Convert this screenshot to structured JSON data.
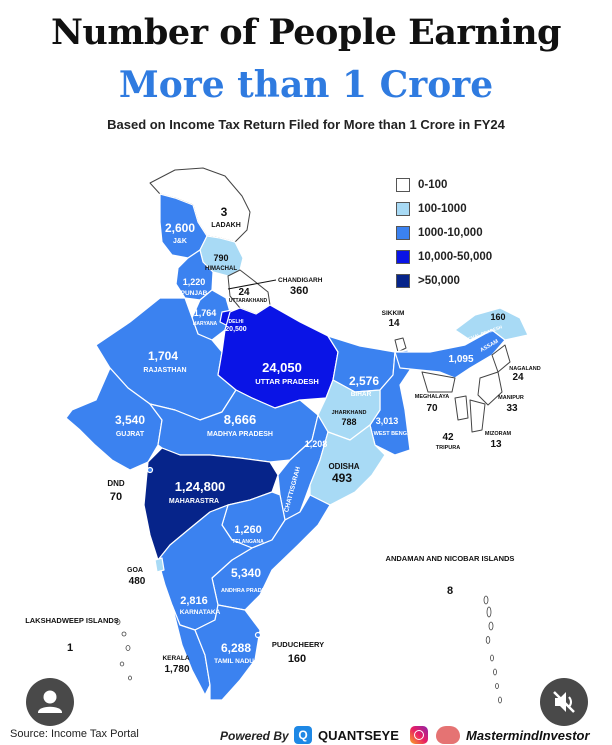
{
  "header": {
    "title": "Number of People Earning",
    "subtitle": "More than 1 Crore",
    "caption": "Based on Income Tax Return Filed for More than 1 Crore in FY24"
  },
  "legend": {
    "items": [
      {
        "label": "0-100",
        "color": "#ffffff"
      },
      {
        "label": "100-1000",
        "color": "#a8daf5"
      },
      {
        "label": "1000-10,000",
        "color": "#3b82f0"
      },
      {
        "label": "10,000-50,000",
        "color": "#0a14e6"
      },
      {
        "label": ">50,000",
        "color": "#06248a"
      }
    ]
  },
  "regions": [
    {
      "id": "ladakh",
      "name": "LADAKH",
      "value": "3"
    },
    {
      "id": "jk",
      "name": "J&K",
      "value": "2,600"
    },
    {
      "id": "himachal",
      "name": "HIMACHAL",
      "value": "790"
    },
    {
      "id": "punjab",
      "name": "PUNJAB",
      "value": "1,220"
    },
    {
      "id": "chandigarh",
      "name": "CHANDIGARH",
      "value": "360"
    },
    {
      "id": "uttarakhand",
      "name": "UTTARAKHAND",
      "value": "24"
    },
    {
      "id": "haryana",
      "name": "HARYANA",
      "value": "1,764"
    },
    {
      "id": "delhi",
      "name": "DELHI",
      "value": "20,500"
    },
    {
      "id": "rajasthan",
      "name": "RAJASTHAN",
      "value": "1,704"
    },
    {
      "id": "uttar-pradesh",
      "name": "UTTAR PRADESH",
      "value": "24,050"
    },
    {
      "id": "bihar",
      "name": "BIHAR",
      "value": "2,576"
    },
    {
      "id": "sikkim",
      "name": "SIKKIM",
      "value": "14"
    },
    {
      "id": "arunachal",
      "name": "ARUNACHAL PRADESH",
      "value": "160"
    },
    {
      "id": "assam",
      "name": "ASSAM",
      "value": "1,095"
    },
    {
      "id": "nagaland",
      "name": "NAGALAND",
      "value": "24"
    },
    {
      "id": "meghalaya",
      "name": "MEGHALAYA",
      "value": "70"
    },
    {
      "id": "manipur",
      "name": "MANIPUR",
      "value": "33"
    },
    {
      "id": "tripura",
      "name": "TRIPURA",
      "value": "42"
    },
    {
      "id": "mizoram",
      "name": "MIZORAM",
      "value": "13"
    },
    {
      "id": "jharkhand",
      "name": "JHARKHAND",
      "value": "788"
    },
    {
      "id": "west-bengal",
      "name": "WEST BENGAL",
      "value": "3,013"
    },
    {
      "id": "gujarat",
      "name": "GUJRAT",
      "value": "3,540"
    },
    {
      "id": "madhya-pradesh",
      "name": "MADHYA PRADESH",
      "value": "8,666"
    },
    {
      "id": "chhattisgarh",
      "name": "CHATTISGRAH",
      "value": "1,208"
    },
    {
      "id": "odisha",
      "name": "ODISHA",
      "value": "493"
    },
    {
      "id": "dnd",
      "name": "DND",
      "value": "70"
    },
    {
      "id": "maharashtra",
      "name": "MAHARASTRA",
      "value": "1,24,800"
    },
    {
      "id": "telangana",
      "name": "TELANGANA",
      "value": "1,260"
    },
    {
      "id": "goa",
      "name": "GOA",
      "value": "480"
    },
    {
      "id": "andhra-pradesh",
      "name": "ANDHRA PRADESH",
      "value": "5,340"
    },
    {
      "id": "karnataka",
      "name": "KARNATAKA",
      "value": "2,816"
    },
    {
      "id": "andaman",
      "name": "ANDAMAN AND NICOBAR ISLANDS",
      "value": "8"
    },
    {
      "id": "lakshadweep",
      "name": "LAKSHADWEEP ISLANDS",
      "value": "1"
    },
    {
      "id": "kerala",
      "name": "KERALA",
      "value": "1,780"
    },
    {
      "id": "tamil-nadu",
      "name": "TAMIL NADU",
      "value": "6,288"
    },
    {
      "id": "puducherry",
      "name": "PUDUCHEERY",
      "value": "160"
    }
  ],
  "footer": {
    "source": "Source:   Income Tax Portal",
    "powered_by": "Powered By",
    "brand_one": "QUANTSEYE",
    "brand_two": "MastermindInvestor"
  },
  "controls": {
    "avatar_icon": "user-avatar-icon",
    "mute_icon": "speaker-muted-icon"
  }
}
